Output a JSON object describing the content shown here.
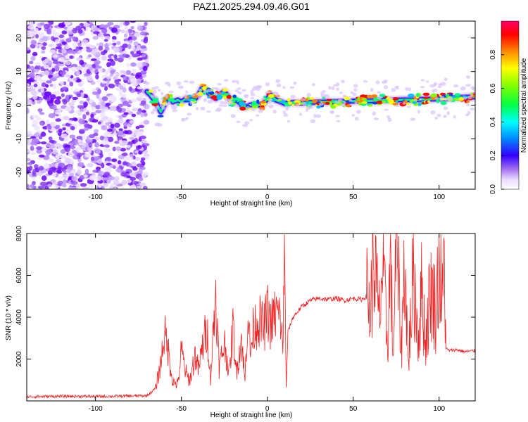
{
  "title": "PAZ1.2025.294.09.46.G01",
  "chart_data": [
    {
      "type": "heatmap",
      "title": "PAZ1.2025.294.09.46.G01",
      "xlabel": "Height of straight line (km)",
      "ylabel": "Frequency (Hz)",
      "xlim": [
        -140,
        121
      ],
      "ylim": [
        -25,
        25
      ],
      "xticks": [
        -100,
        -50,
        0,
        50,
        100
      ],
      "yticks": [
        -20,
        -10,
        0,
        10,
        20
      ],
      "xtick_labels": [
        "-100",
        "-50",
        "0",
        "50",
        "100"
      ],
      "ytick_labels": [
        "-20",
        "-10",
        "0",
        "10",
        "20"
      ],
      "noise_region_x": [
        -140,
        -70
      ],
      "ridge": {
        "x": [
          -70,
          -68,
          -65,
          -62,
          -60,
          -58,
          -55,
          -52,
          -50,
          -47,
          -45,
          -42,
          -40,
          -38,
          -35,
          -33,
          -30,
          -28,
          -25,
          -22,
          -20,
          -18,
          -15,
          -12,
          -10,
          -8,
          -5,
          -2,
          0,
          2,
          5,
          8,
          10,
          15,
          20,
          25,
          30,
          35,
          40,
          45,
          50,
          55,
          60,
          65,
          70,
          75,
          80,
          85,
          90,
          95,
          100,
          105,
          110,
          115,
          121
        ],
        "y": [
          4,
          3,
          1,
          -2,
          0,
          2,
          1,
          1.5,
          1,
          2,
          1.5,
          2,
          3,
          5,
          4,
          3,
          2,
          3,
          4,
          2,
          1,
          1.5,
          0,
          -0.5,
          0,
          0.2,
          0,
          0.5,
          2,
          3,
          1.5,
          1,
          0.5,
          0.8,
          0.6,
          0.8,
          0.9,
          1,
          1,
          1.1,
          1.2,
          1.3,
          1.3,
          1.4,
          1.5,
          1.5,
          1.6,
          1.6,
          1.7,
          1.8,
          1.9,
          2,
          2.2,
          2.3,
          2.5
        ]
      },
      "colorbar": {
        "label": "Normalized spectral amplitude",
        "range": [
          0,
          1
        ],
        "ticks": [
          0,
          0.2,
          0.4,
          0.6,
          0.8
        ],
        "tick_labels": [
          "0.0",
          "0.2",
          "0.4",
          "0.6",
          "0.8"
        ]
      }
    },
    {
      "type": "line",
      "xlabel": "Height of straight line (km)",
      "ylabel": "SNR (10 * v/v)",
      "xlim": [
        -140,
        121
      ],
      "ylim": [
        0,
        8000
      ],
      "xticks": [
        -100,
        -50,
        0,
        50,
        100
      ],
      "yticks": [
        2000,
        4000,
        6000,
        8000
      ],
      "xtick_labels": [
        "-100",
        "-50",
        "0",
        "50",
        "100"
      ],
      "ytick_labels": [
        "2000",
        "4000",
        "6000",
        "8000"
      ],
      "series": [
        {
          "name": "SNR",
          "color": "#ee2222",
          "x": [
            -140,
            -120,
            -100,
            -80,
            -70,
            -65,
            -62,
            -60,
            -58,
            -55,
            -52,
            -50,
            -47,
            -45,
            -42,
            -40,
            -37,
            -35,
            -33,
            -30,
            -28,
            -25,
            -22,
            -20,
            -18,
            -15,
            -13,
            -12,
            -11,
            -10,
            -8,
            -5,
            -2,
            0,
            2,
            5,
            8,
            9,
            10,
            11,
            12,
            15,
            20,
            25,
            30,
            35,
            40,
            45,
            50,
            55,
            58,
            60,
            62,
            65,
            67,
            70,
            72,
            73,
            75,
            78,
            80,
            82,
            85,
            88,
            90,
            92,
            95,
            98,
            100,
            102,
            103,
            104,
            106,
            110,
            115,
            121
          ],
          "y": [
            200,
            220,
            210,
            230,
            250,
            600,
            1800,
            3200,
            2600,
            900,
            800,
            2400,
            1200,
            1000,
            2200,
            1500,
            2900,
            3400,
            1100,
            5200,
            1600,
            2800,
            1300,
            3600,
            1400,
            3000,
            900,
            3100,
            4300,
            2200,
            3500,
            3900,
            3400,
            4300,
            3600,
            4200,
            3900,
            2100,
            8000,
            600,
            3300,
            4000,
            4500,
            4800,
            4900,
            4850,
            4900,
            4800,
            4900,
            4850,
            5000,
            4200,
            7100,
            3800,
            6300,
            2800,
            7500,
            1500,
            8000,
            2500,
            6900,
            1700,
            6100,
            3000,
            5500,
            2700,
            5400,
            4400,
            6500,
            4600,
            6900,
            2500,
            2400,
            2450,
            2350,
            2400
          ]
        }
      ]
    }
  ]
}
